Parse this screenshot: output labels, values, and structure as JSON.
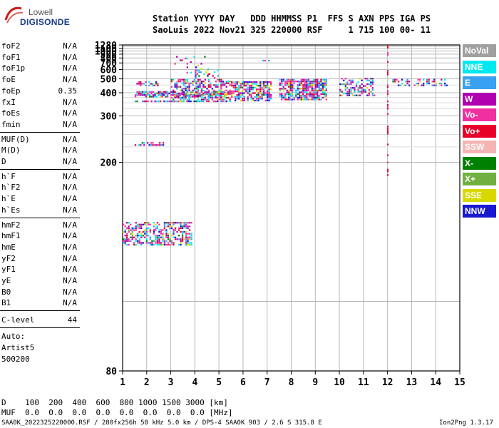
{
  "logo": {
    "line1": "Lowell",
    "line2": "DIGISONDE"
  },
  "header": {
    "row1": "Station YYYY DAY   DDD HHMMSS P1  FFS S AXN PPS IGA PS",
    "row2": "SaoLuis 2022 Nov21 325 220000 RSF     1 715 100 00- 11"
  },
  "params_groups": [
    [
      {
        "name": "foF2",
        "value": "N/A"
      },
      {
        "name": "foF1",
        "value": "N/A"
      },
      {
        "name": "foF1p",
        "value": "N/A"
      },
      {
        "name": "foE",
        "value": "N/A"
      },
      {
        "name": "foEp",
        "value": "0.35"
      },
      {
        "name": "fxI",
        "value": "N/A"
      },
      {
        "name": "foEs",
        "value": "N/A"
      },
      {
        "name": "fmin",
        "value": "N/A"
      }
    ],
    [
      {
        "name": "MUF(D)",
        "value": "N/A"
      },
      {
        "name": "M(D)",
        "value": "N/A"
      },
      {
        "name": "D",
        "value": "N/A"
      }
    ],
    [
      {
        "name": "h`F",
        "value": "N/A"
      },
      {
        "name": "h`F2",
        "value": "N/A"
      },
      {
        "name": "h`E",
        "value": "N/A"
      },
      {
        "name": "h`Es",
        "value": "N/A"
      }
    ],
    [
      {
        "name": "hmF2",
        "value": "N/A"
      },
      {
        "name": "hmF1",
        "value": "N/A"
      },
      {
        "name": "hmE",
        "value": "N/A"
      },
      {
        "name": "yF2",
        "value": "N/A"
      },
      {
        "name": "yF1",
        "value": "N/A"
      },
      {
        "name": "yE",
        "value": "N/A"
      },
      {
        "name": "B0",
        "value": "N/A"
      },
      {
        "name": "B1",
        "value": "N/A"
      }
    ]
  ],
  "clevel": {
    "name": "C-level",
    "value": "44"
  },
  "auto": {
    "line1": "Auto:",
    "line2": "Artist5",
    "line3": "500200"
  },
  "legend": [
    {
      "label": "NoVal",
      "color": "#a0a0a0"
    },
    {
      "label": "NNE",
      "color": "#00e8f0"
    },
    {
      "label": "E",
      "color": "#3aa0f0"
    },
    {
      "label": "W",
      "color": "#b000b0"
    },
    {
      "label": "Vo-",
      "color": "#f030a0"
    },
    {
      "label": "Vo+",
      "color": "#e8002a"
    },
    {
      "label": "SSW",
      "color": "#f4b4b4"
    },
    {
      "label": "X-",
      "color": "#008000"
    },
    {
      "label": "X+",
      "color": "#70b040"
    },
    {
      "label": "SSE",
      "color": "#d8d800"
    },
    {
      "label": "NNW",
      "color": "#1818d0"
    }
  ],
  "footer": {
    "d_row": "D    100  200  400  600  800 1000 1500 3000 [km]",
    "muf_row": "MUF  0.0  0.0  0.0  0.0  0.0  0.0  0.0  0.0 [MHz]",
    "file_info": "SAA0K_2022325220000.RSF / 280fx256h 50 kHz 5.0 km / DPS-4 SAA0K 903 / 2.6 S 315.8 E",
    "version": "Ion2Png 1.3.17"
  },
  "chart_data": {
    "type": "scatter",
    "xlim": [
      1,
      15
    ],
    "ylim": [
      80,
      1280
    ],
    "y_scale": "reciprocal",
    "x_ticks": [
      1,
      2,
      3,
      4,
      5,
      6,
      7,
      8,
      9,
      10,
      11,
      12,
      13,
      14,
      15
    ],
    "y_ticks": [
      80,
      200,
      300,
      400,
      500,
      600,
      700,
      800,
      900,
      1000,
      1100,
      1280
    ],
    "grid": true,
    "clusters": [
      {
        "x": [
          1.0,
          3.9
        ],
        "y": [
          125,
          140
        ],
        "density": 0.55
      },
      {
        "x": [
          1.5,
          2.8
        ],
        "y": [
          226,
          234
        ],
        "density": 0.45
      },
      {
        "x": [
          1.5,
          5.5
        ],
        "y": [
          350,
          360
        ],
        "density": 0.8
      },
      {
        "x": [
          1.5,
          5.5
        ],
        "y": [
          375,
          410
        ],
        "density": 0.7
      },
      {
        "x": [
          1.5,
          2.5
        ],
        "y": [
          440,
          480
        ],
        "density": 0.4
      },
      {
        "x": [
          3.0,
          5.5
        ],
        "y": [
          360,
          500
        ],
        "density": 0.55
      },
      {
        "x": [
          4.0,
          5.0
        ],
        "y": [
          500,
          600
        ],
        "density": 0.25
      },
      {
        "x": [
          5.5,
          7.2
        ],
        "y": [
          355,
          480
        ],
        "density": 0.75
      },
      {
        "x": [
          7.5,
          9.5
        ],
        "y": [
          360,
          500
        ],
        "density": 0.8
      },
      {
        "x": [
          10.0,
          11.5
        ],
        "y": [
          380,
          510
        ],
        "density": 0.5
      },
      {
        "x": [
          12.2,
          14.5
        ],
        "y": [
          440,
          500
        ],
        "density": 0.4
      },
      {
        "x": [
          3.0,
          4.6
        ],
        "y": [
          500,
          850
        ],
        "density": 0.07
      },
      {
        "x": [
          6.8,
          7.2
        ],
        "y": [
          720,
          760
        ],
        "density": 0.3
      },
      {
        "x": [
          11.98,
          12.02
        ],
        "y": [
          180,
          1280
        ],
        "density": 0.35
      }
    ]
  }
}
